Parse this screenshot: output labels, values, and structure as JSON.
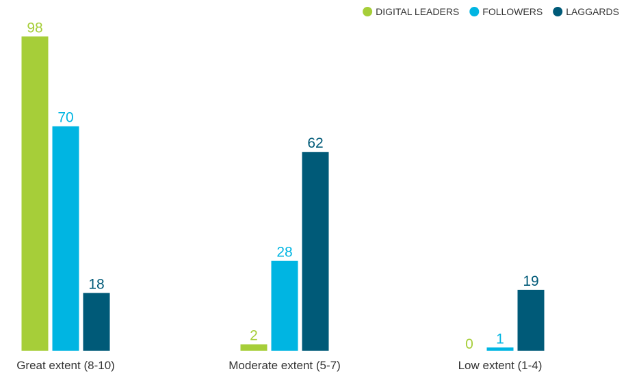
{
  "chart_data": {
    "type": "bar",
    "categories": [
      "Great extent (8-10)",
      "Moderate extent (5-7)",
      "Low extent (1-4)"
    ],
    "series": [
      {
        "name": "DIGITAL LEADERS",
        "color": "#a6ce39",
        "values": [
          98,
          2,
          0
        ]
      },
      {
        "name": "FOLLOWERS",
        "color": "#00b5e2",
        "values": [
          70,
          28,
          1
        ]
      },
      {
        "name": "LAGGARDS",
        "color": "#005a78",
        "values": [
          18,
          62,
          19
        ]
      }
    ],
    "ylim": [
      0,
      100
    ],
    "legend": "top-right"
  }
}
